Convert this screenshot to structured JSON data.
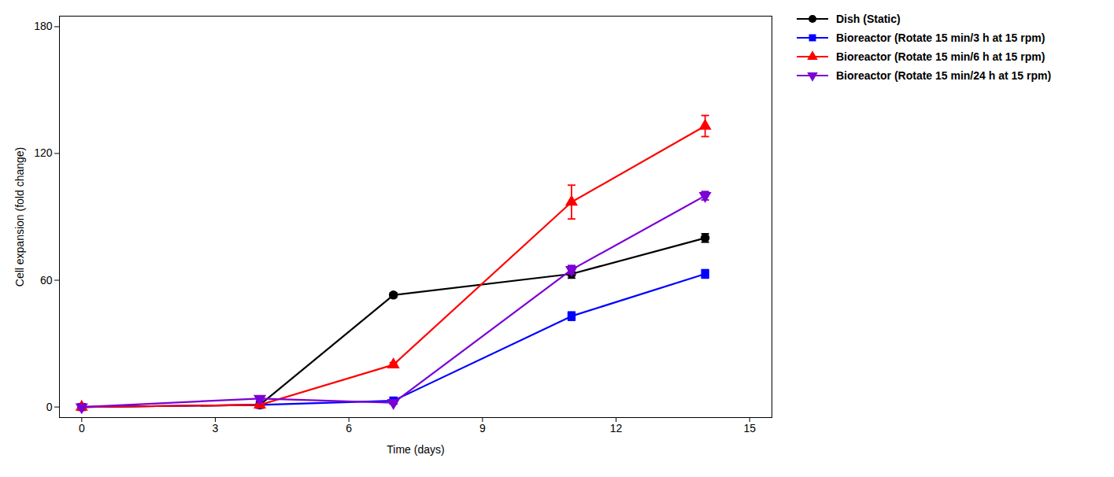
{
  "chart_data": {
    "type": "line",
    "x": [
      0,
      4,
      7,
      11,
      14
    ],
    "series": [
      {
        "name": "Dish (Static)",
        "color": "#000000",
        "marker": "circle",
        "values": [
          0,
          1.0,
          53,
          63,
          80
        ],
        "yerr": [
          0,
          0.5,
          1,
          2,
          2
        ]
      },
      {
        "name": "Bioreactor (Rotate 15 min/3 h at 15 rpm)",
        "color": "#0000FF",
        "marker": "square",
        "values": [
          0,
          1.0,
          3,
          43,
          63
        ],
        "yerr": [
          0,
          0.5,
          1,
          2,
          2
        ]
      },
      {
        "name": "Bioreactor (Rotate 15 min/6 h at 15 rpm)",
        "color": "#FF0000",
        "marker": "triangle-up",
        "values": [
          0,
          1.0,
          20,
          97,
          133
        ],
        "yerr": [
          0,
          0.5,
          1,
          8,
          5
        ]
      },
      {
        "name": "Bioreactor (Rotate 15 min/24 h at 15 rpm)",
        "color": "#7B00D4",
        "marker": "triangle-down",
        "values": [
          0,
          4,
          2,
          65,
          100
        ],
        "yerr": [
          0,
          1,
          0.5,
          2,
          2
        ]
      }
    ],
    "xlabel": "Time (days)",
    "ylabel": "Cell expansion (fold change)",
    "xlim": [
      -0.5,
      15.5
    ],
    "ylim": [
      -5,
      185
    ],
    "xticks": [
      0,
      3,
      6,
      9,
      12,
      15
    ],
    "yticks": [
      0,
      60,
      120,
      180
    ],
    "grid": false,
    "legend": "right"
  }
}
